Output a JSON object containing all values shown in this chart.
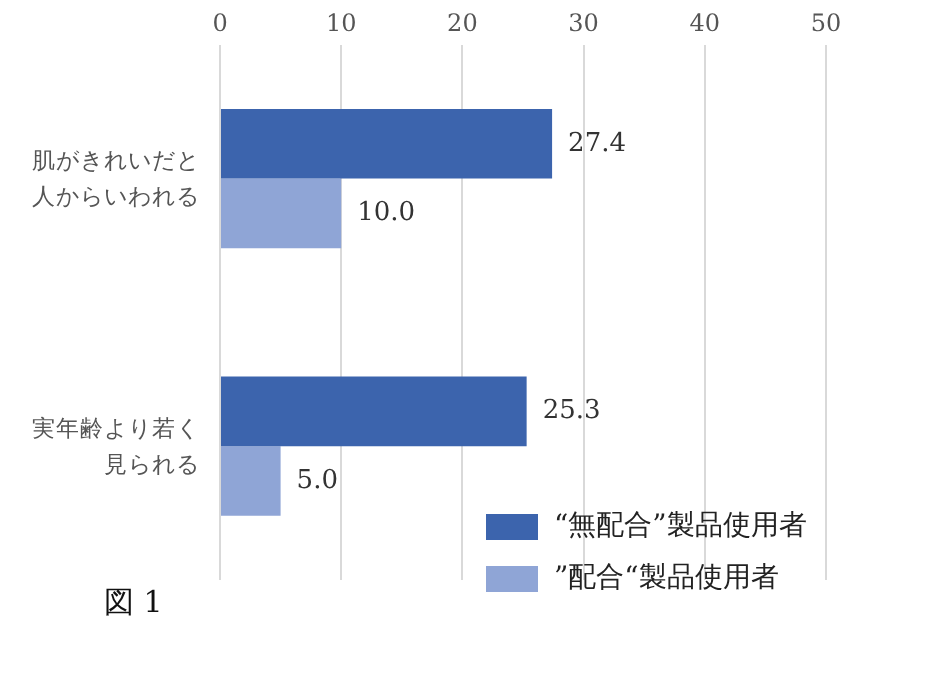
{
  "chart_data": {
    "type": "bar",
    "orientation": "horizontal",
    "categories": [
      "肌がきれいだと人からいわれる",
      "実年齢より若く見られる"
    ],
    "series": [
      {
        "name": "“無配合”製品使用者",
        "color": "#3c64ad",
        "values": [
          27.4,
          25.3
        ]
      },
      {
        "name": "”配合“製品使用者",
        "color": "#8fa5d6",
        "values": [
          10.0,
          5.0
        ]
      }
    ],
    "xlim": [
      0,
      50
    ],
    "xticks": [
      0,
      10,
      20,
      30,
      40,
      50
    ],
    "grid": "x",
    "legend": "bottom right",
    "value_labels": [
      [
        "27.4",
        "25.3"
      ],
      [
        "10.0",
        "5.0"
      ]
    ],
    "annotations": [
      "図 1"
    ]
  }
}
